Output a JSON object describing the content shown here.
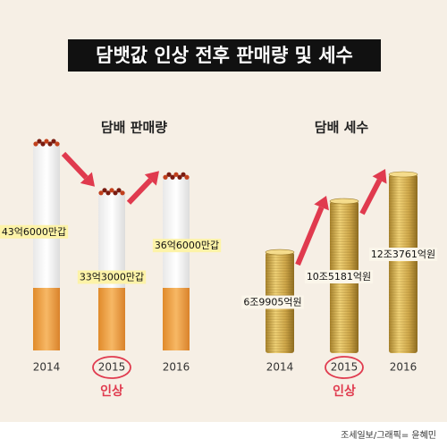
{
  "title": "담뱃값 인상 전후 판매량 및 세수",
  "source": "조세일보/그래픽= 윤혜민",
  "chart_data": [
    {
      "type": "cigarette",
      "title": "담배 판매량",
      "categories": [
        "2014",
        "2015",
        "2016"
      ],
      "values": [
        43.6,
        33.3,
        36.6
      ],
      "value_labels": [
        "43억6000만갑",
        "33억3000만갑",
        "36억6000만갑"
      ],
      "annotation": "인상",
      "highlight_index": 1,
      "color": "#e03a4e"
    },
    {
      "type": "coins",
      "title": "담배 세수",
      "categories": [
        "2014",
        "2015",
        "2016"
      ],
      "values": [
        6.9905,
        10.5181,
        12.3761
      ],
      "value_labels": [
        "6조9905억원",
        "10조5181억원",
        "12조3761억원"
      ],
      "annotation": "인상",
      "highlight_index": 1,
      "color": "#e03a4e"
    }
  ]
}
